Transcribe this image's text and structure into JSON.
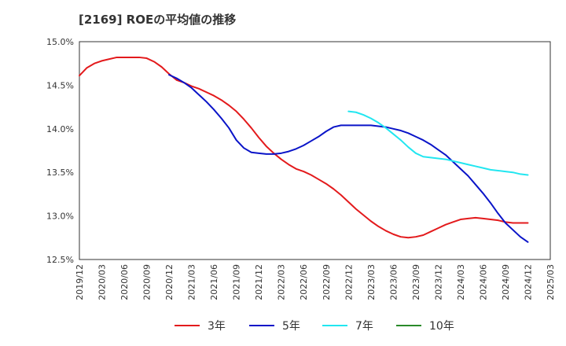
{
  "chart_data": {
    "type": "line",
    "title": "[2169]  ROEの平均値の推移",
    "xlabel": "",
    "ylabel": "",
    "ylim": [
      12.5,
      15.0
    ],
    "yticks": [
      12.5,
      13.0,
      13.5,
      14.0,
      14.5,
      15.0
    ],
    "ytick_labels": [
      "12.5%",
      "13.0%",
      "13.5%",
      "14.0%",
      "14.5%",
      "15.0%"
    ],
    "x_start": "2019/12",
    "x_end": "2025/03",
    "xtick_labels": [
      "2019/12",
      "2020/03",
      "2020/06",
      "2020/09",
      "2020/12",
      "2021/03",
      "2021/06",
      "2021/09",
      "2021/12",
      "2022/03",
      "2022/06",
      "2022/09",
      "2022/12",
      "2023/03",
      "2023/06",
      "2023/09",
      "2023/12",
      "2024/03",
      "2024/06",
      "2024/09",
      "2024/12",
      "2025/03"
    ],
    "grid": true,
    "legend_position": "bottom",
    "series": [
      {
        "name": "3年",
        "color": "#e31a1c",
        "points": [
          [
            "2019/12",
            14.61
          ],
          [
            "2020/01",
            14.7
          ],
          [
            "2020/02",
            14.75
          ],
          [
            "2020/03",
            14.78
          ],
          [
            "2020/04",
            14.8
          ],
          [
            "2020/05",
            14.82
          ],
          [
            "2020/06",
            14.82
          ],
          [
            "2020/07",
            14.82
          ],
          [
            "2020/08",
            14.82
          ],
          [
            "2020/09",
            14.81
          ],
          [
            "2020/10",
            14.77
          ],
          [
            "2020/11",
            14.71
          ],
          [
            "2020/12",
            14.63
          ],
          [
            "2021/01",
            14.56
          ],
          [
            "2021/02",
            14.53
          ],
          [
            "2021/03",
            14.49
          ],
          [
            "2021/04",
            14.46
          ],
          [
            "2021/05",
            14.42
          ],
          [
            "2021/06",
            14.38
          ],
          [
            "2021/07",
            14.33
          ],
          [
            "2021/08",
            14.27
          ],
          [
            "2021/09",
            14.2
          ],
          [
            "2021/10",
            14.11
          ],
          [
            "2021/11",
            14.01
          ],
          [
            "2021/12",
            13.9
          ],
          [
            "2022/01",
            13.8
          ],
          [
            "2022/02",
            13.72
          ],
          [
            "2022/03",
            13.65
          ],
          [
            "2022/04",
            13.59
          ],
          [
            "2022/05",
            13.54
          ],
          [
            "2022/06",
            13.51
          ],
          [
            "2022/07",
            13.47
          ],
          [
            "2022/08",
            13.42
          ],
          [
            "2022/09",
            13.37
          ],
          [
            "2022/10",
            13.31
          ],
          [
            "2022/11",
            13.24
          ],
          [
            "2022/12",
            13.16
          ],
          [
            "2023/01",
            13.08
          ],
          [
            "2023/02",
            13.01
          ],
          [
            "2023/03",
            12.94
          ],
          [
            "2023/04",
            12.88
          ],
          [
            "2023/05",
            12.83
          ],
          [
            "2023/06",
            12.79
          ],
          [
            "2023/07",
            12.76
          ],
          [
            "2023/08",
            12.75
          ],
          [
            "2023/09",
            12.76
          ],
          [
            "2023/10",
            12.78
          ],
          [
            "2023/11",
            12.82
          ],
          [
            "2023/12",
            12.86
          ],
          [
            "2024/01",
            12.9
          ],
          [
            "2024/02",
            12.93
          ],
          [
            "2024/03",
            12.96
          ],
          [
            "2024/04",
            12.97
          ],
          [
            "2024/05",
            12.98
          ],
          [
            "2024/06",
            12.97
          ],
          [
            "2024/07",
            12.96
          ],
          [
            "2024/08",
            12.95
          ],
          [
            "2024/09",
            12.93
          ],
          [
            "2024/10",
            12.92
          ],
          [
            "2024/11",
            12.92
          ],
          [
            "2024/12",
            12.92
          ]
        ]
      },
      {
        "name": "5年",
        "color": "#0a14c8",
        "points": [
          [
            "2020/12",
            14.62
          ],
          [
            "2021/01",
            14.58
          ],
          [
            "2021/02",
            14.53
          ],
          [
            "2021/03",
            14.47
          ],
          [
            "2021/04",
            14.39
          ],
          [
            "2021/05",
            14.31
          ],
          [
            "2021/06",
            14.22
          ],
          [
            "2021/07",
            14.12
          ],
          [
            "2021/08",
            14.01
          ],
          [
            "2021/09",
            13.87
          ],
          [
            "2021/10",
            13.78
          ],
          [
            "2021/11",
            13.73
          ],
          [
            "2021/12",
            13.72
          ],
          [
            "2022/01",
            13.71
          ],
          [
            "2022/02",
            13.71
          ],
          [
            "2022/03",
            13.72
          ],
          [
            "2022/04",
            13.74
          ],
          [
            "2022/05",
            13.77
          ],
          [
            "2022/06",
            13.81
          ],
          [
            "2022/07",
            13.86
          ],
          [
            "2022/08",
            13.91
          ],
          [
            "2022/09",
            13.97
          ],
          [
            "2022/10",
            14.02
          ],
          [
            "2022/11",
            14.04
          ],
          [
            "2022/12",
            14.04
          ],
          [
            "2023/01",
            14.04
          ],
          [
            "2023/02",
            14.04
          ],
          [
            "2023/03",
            14.04
          ],
          [
            "2023/04",
            14.03
          ],
          [
            "2023/05",
            14.02
          ],
          [
            "2023/06",
            14.0
          ],
          [
            "2023/07",
            13.98
          ],
          [
            "2023/08",
            13.95
          ],
          [
            "2023/09",
            13.91
          ],
          [
            "2023/10",
            13.87
          ],
          [
            "2023/11",
            13.82
          ],
          [
            "2023/12",
            13.76
          ],
          [
            "2024/01",
            13.7
          ],
          [
            "2024/02",
            13.62
          ],
          [
            "2024/03",
            13.54
          ],
          [
            "2024/04",
            13.46
          ],
          [
            "2024/05",
            13.36
          ],
          [
            "2024/06",
            13.26
          ],
          [
            "2024/07",
            13.15
          ],
          [
            "2024/08",
            13.03
          ],
          [
            "2024/09",
            12.92
          ],
          [
            "2024/10",
            12.84
          ],
          [
            "2024/11",
            12.76
          ],
          [
            "2024/12",
            12.7
          ]
        ]
      },
      {
        "name": "7年",
        "color": "#22e6f0",
        "points": [
          [
            "2022/12",
            14.2
          ],
          [
            "2023/01",
            14.19
          ],
          [
            "2023/02",
            14.16
          ],
          [
            "2023/03",
            14.12
          ],
          [
            "2023/04",
            14.07
          ],
          [
            "2023/05",
            14.01
          ],
          [
            "2023/06",
            13.94
          ],
          [
            "2023/07",
            13.87
          ],
          [
            "2023/08",
            13.79
          ],
          [
            "2023/09",
            13.72
          ],
          [
            "2023/10",
            13.68
          ],
          [
            "2023/11",
            13.67
          ],
          [
            "2023/12",
            13.66
          ],
          [
            "2024/01",
            13.65
          ],
          [
            "2024/02",
            13.63
          ],
          [
            "2024/03",
            13.61
          ],
          [
            "2024/04",
            13.59
          ],
          [
            "2024/05",
            13.57
          ],
          [
            "2024/06",
            13.55
          ],
          [
            "2024/07",
            13.53
          ],
          [
            "2024/08",
            13.52
          ],
          [
            "2024/09",
            13.51
          ],
          [
            "2024/10",
            13.5
          ],
          [
            "2024/11",
            13.48
          ],
          [
            "2024/12",
            13.47
          ]
        ]
      },
      {
        "name": "10年",
        "color": "#2a8a2a",
        "points": []
      }
    ]
  }
}
